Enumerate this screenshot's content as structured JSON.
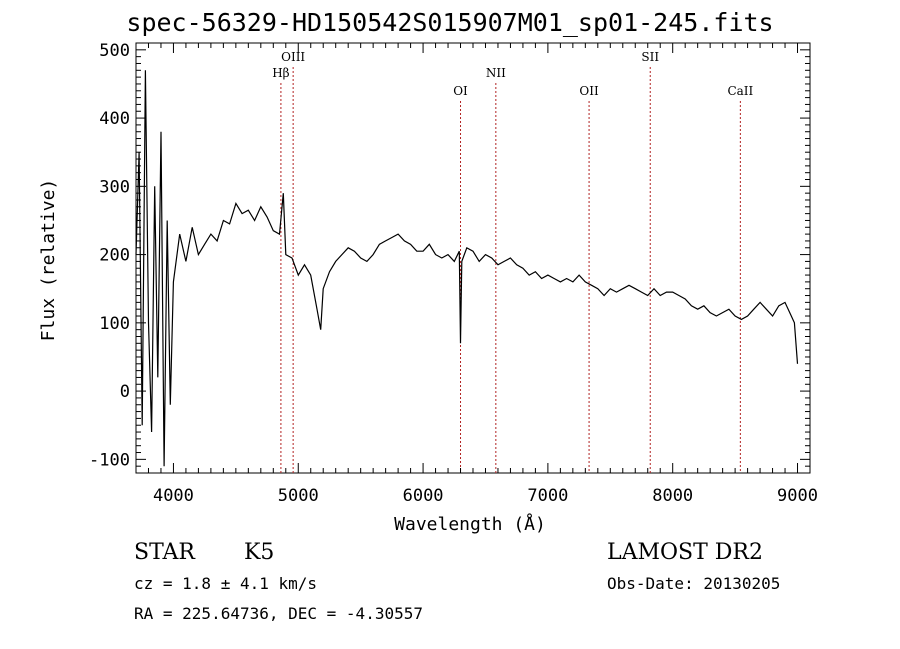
{
  "chart_data": {
    "type": "line",
    "title": "spec-56329-HD150542S015907M01_sp01-245.fits",
    "xlabel": "Wavelength (Å)",
    "ylabel": "Flux (relative)",
    "xlim": [
      3700,
      9100
    ],
    "ylim": [
      -120,
      510
    ],
    "xticks": [
      4000,
      5000,
      6000,
      7000,
      8000,
      9000
    ],
    "yticks": [
      -100,
      0,
      100,
      200,
      300,
      400,
      500
    ],
    "grid": false,
    "line_color": "#000000",
    "marker_color": "#b22222",
    "series": [
      {
        "x": [
          3700,
          3725,
          3750,
          3775,
          3800,
          3825,
          3850,
          3875,
          3900,
          3925,
          3950,
          3975,
          4000,
          4050,
          4100,
          4150,
          4200,
          4250,
          4300,
          4350,
          4400,
          4450,
          4500,
          4550,
          4600,
          4650,
          4700,
          4750,
          4800,
          4850,
          4880,
          4900,
          4950,
          5000,
          5050,
          5100,
          5150,
          5180,
          5200,
          5250,
          5300,
          5350,
          5400,
          5450,
          5500,
          5550,
          5600,
          5650,
          5700,
          5750,
          5800,
          5850,
          5900,
          5950,
          6000,
          6050,
          6100,
          6150,
          6200,
          6250,
          6290,
          6300,
          6310,
          6350,
          6400,
          6450,
          6500,
          6550,
          6600,
          6650,
          6700,
          6750,
          6800,
          6850,
          6900,
          6950,
          7000,
          7050,
          7100,
          7150,
          7200,
          7250,
          7300,
          7350,
          7400,
          7450,
          7500,
          7550,
          7600,
          7650,
          7700,
          7750,
          7800,
          7850,
          7900,
          7950,
          8000,
          8050,
          8100,
          8150,
          8200,
          8250,
          8300,
          8350,
          8400,
          8450,
          8500,
          8550,
          8600,
          8650,
          8700,
          8750,
          8800,
          8850,
          8900,
          8950,
          8975,
          9000
        ],
        "y": [
          200,
          350,
          -50,
          470,
          100,
          -60,
          300,
          20,
          380,
          -110,
          250,
          -20,
          160,
          230,
          190,
          240,
          200,
          215,
          230,
          220,
          250,
          245,
          275,
          260,
          265,
          250,
          270,
          255,
          235,
          230,
          290,
          200,
          195,
          170,
          185,
          170,
          120,
          90,
          150,
          175,
          190,
          200,
          210,
          205,
          195,
          190,
          200,
          215,
          220,
          225,
          230,
          220,
          215,
          205,
          205,
          215,
          200,
          195,
          200,
          190,
          205,
          70,
          190,
          210,
          205,
          190,
          200,
          195,
          185,
          190,
          195,
          185,
          180,
          170,
          175,
          165,
          170,
          165,
          160,
          165,
          160,
          170,
          160,
          155,
          150,
          140,
          150,
          145,
          150,
          155,
          150,
          145,
          140,
          150,
          140,
          145,
          145,
          140,
          135,
          125,
          120,
          125,
          115,
          110,
          115,
          120,
          110,
          105,
          110,
          120,
          130,
          120,
          110,
          125,
          130,
          110,
          100,
          40
        ]
      }
    ],
    "lines": [
      {
        "label": "Hβ",
        "x": 4861,
        "label_row": 2
      },
      {
        "label": "OIII",
        "x": 4959,
        "label_row": 1
      },
      {
        "label": "OI",
        "x": 6300,
        "label_row": 3
      },
      {
        "label": "NII",
        "x": 6583,
        "label_row": 2
      },
      {
        "label": "OII",
        "x": 7330,
        "label_row": 3
      },
      {
        "label": "SII",
        "x": 7820,
        "label_row": 1
      },
      {
        "label": "CaII",
        "x": 8542,
        "label_row": 3
      }
    ]
  },
  "info": {
    "object_class": "STAR",
    "subclass": "K5",
    "survey": "LAMOST DR2",
    "cz": "cz = 1.8 ± 4.1 km/s",
    "obs_date": "Obs-Date: 20130205",
    "coords": "RA = 225.64736, DEC =  -4.30557"
  }
}
